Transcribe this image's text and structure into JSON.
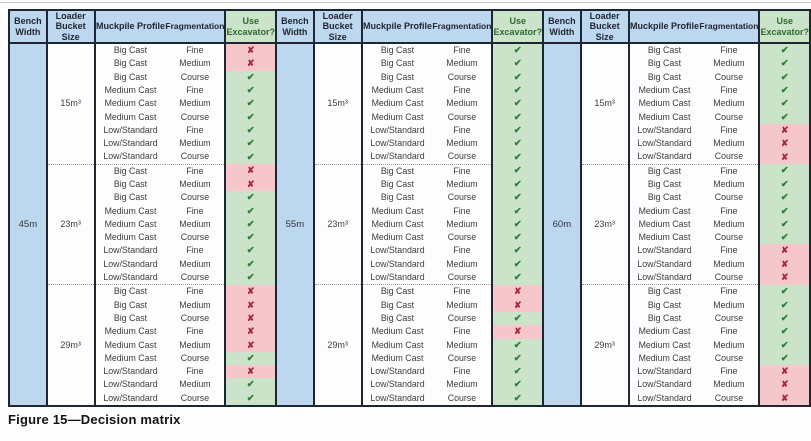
{
  "caption": "Figure 15—Decision matrix",
  "headers": {
    "bench": "Bench Width",
    "bucket": "Loader Bucket Size",
    "profile": "Muckpile Profile",
    "fragmentation": "Fragmentation",
    "excavator": "Use Excavator?"
  },
  "marks": {
    "yes": "✔",
    "no": "✘"
  },
  "colors": {
    "header_blue": "#bdd7ee",
    "yes_green_bg": "#cbe4c9",
    "no_pink_bg": "#f5c6ca",
    "check_green": "#2e7d32",
    "cross_red": "#a8283b",
    "border_dark": "#1e2633"
  },
  "panels": [
    {
      "bench_width": "45m",
      "groups": [
        {
          "bucket_size": "15m³",
          "rows": [
            {
              "profile": "Big Cast",
              "fragmentation": "Fine",
              "use_excavator": false
            },
            {
              "profile": "Big Cast",
              "fragmentation": "Medium",
              "use_excavator": false
            },
            {
              "profile": "Big Cast",
              "fragmentation": "Course",
              "use_excavator": true
            },
            {
              "profile": "Medium Cast",
              "fragmentation": "Fine",
              "use_excavator": true
            },
            {
              "profile": "Medium Cast",
              "fragmentation": "Medium",
              "use_excavator": true
            },
            {
              "profile": "Medium Cast",
              "fragmentation": "Course",
              "use_excavator": true
            },
            {
              "profile": "Low/Standard",
              "fragmentation": "Fine",
              "use_excavator": true
            },
            {
              "profile": "Low/Standard",
              "fragmentation": "Medium",
              "use_excavator": true
            },
            {
              "profile": "Low/Standard",
              "fragmentation": "Course",
              "use_excavator": true
            }
          ]
        },
        {
          "bucket_size": "23m³",
          "rows": [
            {
              "profile": "Big Cast",
              "fragmentation": "Fine",
              "use_excavator": false
            },
            {
              "profile": "Big Cast",
              "fragmentation": "Medium",
              "use_excavator": false
            },
            {
              "profile": "Big Cast",
              "fragmentation": "Course",
              "use_excavator": true
            },
            {
              "profile": "Medium Cast",
              "fragmentation": "Fine",
              "use_excavator": true
            },
            {
              "profile": "Medium Cast",
              "fragmentation": "Medium",
              "use_excavator": true
            },
            {
              "profile": "Medium Cast",
              "fragmentation": "Course",
              "use_excavator": true
            },
            {
              "profile": "Low/Standard",
              "fragmentation": "Fine",
              "use_excavator": true
            },
            {
              "profile": "Low/Standard",
              "fragmentation": "Medium",
              "use_excavator": true
            },
            {
              "profile": "Low/Standard",
              "fragmentation": "Course",
              "use_excavator": true
            }
          ]
        },
        {
          "bucket_size": "29m³",
          "rows": [
            {
              "profile": "Big Cast",
              "fragmentation": "Fine",
              "use_excavator": false
            },
            {
              "profile": "Big Cast",
              "fragmentation": "Medium",
              "use_excavator": false
            },
            {
              "profile": "Big Cast",
              "fragmentation": "Course",
              "use_excavator": false
            },
            {
              "profile": "Medium Cast",
              "fragmentation": "Fine",
              "use_excavator": false
            },
            {
              "profile": "Medium Cast",
              "fragmentation": "Medium",
              "use_excavator": false
            },
            {
              "profile": "Medium Cast",
              "fragmentation": "Course",
              "use_excavator": true
            },
            {
              "profile": "Low/Standard",
              "fragmentation": "Fine",
              "use_excavator": false
            },
            {
              "profile": "Low/Standard",
              "fragmentation": "Medium",
              "use_excavator": true
            },
            {
              "profile": "Low/Standard",
              "fragmentation": "Course",
              "use_excavator": true
            }
          ]
        }
      ]
    },
    {
      "bench_width": "55m",
      "groups": [
        {
          "bucket_size": "15m³",
          "rows": [
            {
              "profile": "Big Cast",
              "fragmentation": "Fine",
              "use_excavator": true
            },
            {
              "profile": "Big Cast",
              "fragmentation": "Medium",
              "use_excavator": true
            },
            {
              "profile": "Big Cast",
              "fragmentation": "Course",
              "use_excavator": true
            },
            {
              "profile": "Medium Cast",
              "fragmentation": "Fine",
              "use_excavator": true
            },
            {
              "profile": "Medium Cast",
              "fragmentation": "Medium",
              "use_excavator": true
            },
            {
              "profile": "Medium Cast",
              "fragmentation": "Course",
              "use_excavator": true
            },
            {
              "profile": "Low/Standard",
              "fragmentation": "Fine",
              "use_excavator": true
            },
            {
              "profile": "Low/Standard",
              "fragmentation": "Medium",
              "use_excavator": true
            },
            {
              "profile": "Low/Standard",
              "fragmentation": "Course",
              "use_excavator": true
            }
          ]
        },
        {
          "bucket_size": "23m³",
          "rows": [
            {
              "profile": "Big Cast",
              "fragmentation": "Fine",
              "use_excavator": true
            },
            {
              "profile": "Big Cast",
              "fragmentation": "Medium",
              "use_excavator": true
            },
            {
              "profile": "Big Cast",
              "fragmentation": "Course",
              "use_excavator": true
            },
            {
              "profile": "Medium Cast",
              "fragmentation": "Fine",
              "use_excavator": true
            },
            {
              "profile": "Medium Cast",
              "fragmentation": "Medium",
              "use_excavator": true
            },
            {
              "profile": "Medium Cast",
              "fragmentation": "Course",
              "use_excavator": true
            },
            {
              "profile": "Low/Standard",
              "fragmentation": "Fine",
              "use_excavator": true
            },
            {
              "profile": "Low/Standard",
              "fragmentation": "Medium",
              "use_excavator": true
            },
            {
              "profile": "Low/Standard",
              "fragmentation": "Course",
              "use_excavator": true
            }
          ]
        },
        {
          "bucket_size": "29m³",
          "rows": [
            {
              "profile": "Big Cast",
              "fragmentation": "Fine",
              "use_excavator": false
            },
            {
              "profile": "Big Cast",
              "fragmentation": "Medium",
              "use_excavator": false
            },
            {
              "profile": "Big Cast",
              "fragmentation": "Course",
              "use_excavator": true
            },
            {
              "profile": "Medium Cast",
              "fragmentation": "Fine",
              "use_excavator": false
            },
            {
              "profile": "Medium Cast",
              "fragmentation": "Medium",
              "use_excavator": true
            },
            {
              "profile": "Medium Cast",
              "fragmentation": "Course",
              "use_excavator": true
            },
            {
              "profile": "Low/Standard",
              "fragmentation": "Fine",
              "use_excavator": true
            },
            {
              "profile": "Low/Standard",
              "fragmentation": "Medium",
              "use_excavator": true
            },
            {
              "profile": "Low/Standard",
              "fragmentation": "Course",
              "use_excavator": true
            }
          ]
        }
      ]
    },
    {
      "bench_width": "60m",
      "groups": [
        {
          "bucket_size": "15m³",
          "rows": [
            {
              "profile": "Big Cast",
              "fragmentation": "Fine",
              "use_excavator": true
            },
            {
              "profile": "Big Cast",
              "fragmentation": "Medium",
              "use_excavator": true
            },
            {
              "profile": "Big Cast",
              "fragmentation": "Course",
              "use_excavator": true
            },
            {
              "profile": "Medium Cast",
              "fragmentation": "Fine",
              "use_excavator": true
            },
            {
              "profile": "Medium Cast",
              "fragmentation": "Medium",
              "use_excavator": true
            },
            {
              "profile": "Medium Cast",
              "fragmentation": "Course",
              "use_excavator": true
            },
            {
              "profile": "Low/Standard",
              "fragmentation": "Fine",
              "use_excavator": false
            },
            {
              "profile": "Low/Standard",
              "fragmentation": "Medium",
              "use_excavator": false
            },
            {
              "profile": "Low/Standard",
              "fragmentation": "Course",
              "use_excavator": false
            }
          ]
        },
        {
          "bucket_size": "23m³",
          "rows": [
            {
              "profile": "Big Cast",
              "fragmentation": "Fine",
              "use_excavator": true
            },
            {
              "profile": "Big Cast",
              "fragmentation": "Medium",
              "use_excavator": true
            },
            {
              "profile": "Big Cast",
              "fragmentation": "Course",
              "use_excavator": true
            },
            {
              "profile": "Medium Cast",
              "fragmentation": "Fine",
              "use_excavator": true
            },
            {
              "profile": "Medium Cast",
              "fragmentation": "Medium",
              "use_excavator": true
            },
            {
              "profile": "Medium Cast",
              "fragmentation": "Course",
              "use_excavator": true
            },
            {
              "profile": "Low/Standard",
              "fragmentation": "Fine",
              "use_excavator": false
            },
            {
              "profile": "Low/Standard",
              "fragmentation": "Medium",
              "use_excavator": false
            },
            {
              "profile": "Low/Standard",
              "fragmentation": "Course",
              "use_excavator": false
            }
          ]
        },
        {
          "bucket_size": "29m³",
          "rows": [
            {
              "profile": "Big Cast",
              "fragmentation": "Fine",
              "use_excavator": true
            },
            {
              "profile": "Big Cast",
              "fragmentation": "Medium",
              "use_excavator": true
            },
            {
              "profile": "Big Cast",
              "fragmentation": "Course",
              "use_excavator": true
            },
            {
              "profile": "Medium Cast",
              "fragmentation": "Fine",
              "use_excavator": true
            },
            {
              "profile": "Medium Cast",
              "fragmentation": "Medium",
              "use_excavator": true
            },
            {
              "profile": "Medium Cast",
              "fragmentation": "Course",
              "use_excavator": true
            },
            {
              "profile": "Low/Standard",
              "fragmentation": "Fine",
              "use_excavator": false
            },
            {
              "profile": "Low/Standard",
              "fragmentation": "Medium",
              "use_excavator": false
            },
            {
              "profile": "Low/Standard",
              "fragmentation": "Course",
              "use_excavator": false
            }
          ]
        }
      ]
    }
  ]
}
